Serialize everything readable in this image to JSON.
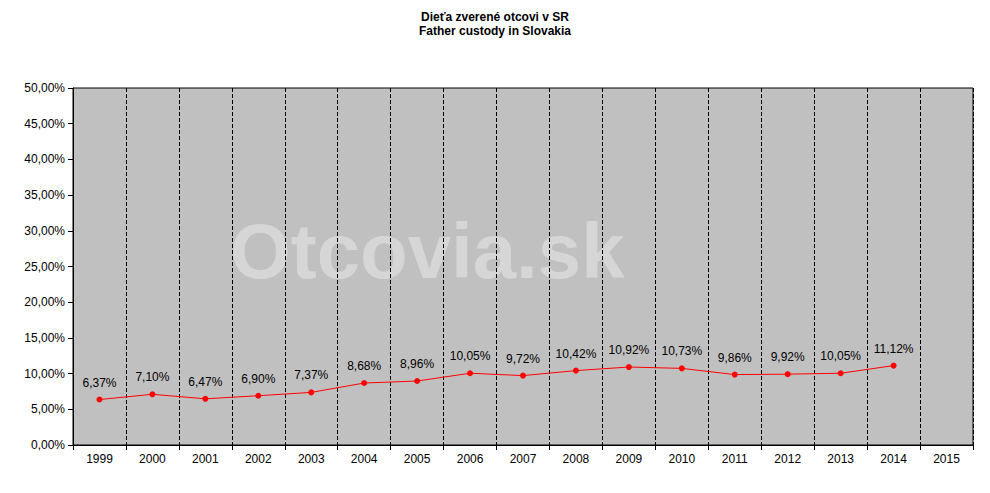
{
  "chart_data": {
    "type": "line",
    "title": "Dieťa zverené otcovi v SR",
    "subtitle": "Father custody in Slovakia",
    "watermark": "Otcovia.sk",
    "categories": [
      "1999",
      "2000",
      "2001",
      "2002",
      "2003",
      "2004",
      "2005",
      "2006",
      "2007",
      "2008",
      "2009",
      "2010",
      "2011",
      "2012",
      "2013",
      "2014",
      "2015"
    ],
    "values": [
      6.37,
      7.1,
      6.47,
      6.9,
      7.37,
      8.68,
      8.96,
      10.05,
      9.72,
      10.42,
      10.92,
      10.73,
      9.86,
      9.92,
      10.05,
      11.12,
      null
    ],
    "value_labels": [
      "6,37%",
      "7,10%",
      "6,47%",
      "6,90%",
      "7,37%",
      "8,68%",
      "8,96%",
      "10,05%",
      "9,72%",
      "10,42%",
      "10,92%",
      "10,73%",
      "9,86%",
      "9,92%",
      "10,05%",
      "11,12%",
      null
    ],
    "color": "#ff0000",
    "marker": "circle",
    "data_labels": true,
    "grid": true,
    "ylim": [
      0,
      50
    ],
    "yticks": [
      {
        "value": 0,
        "label": "0,00%"
      },
      {
        "value": 5,
        "label": "5,00%"
      },
      {
        "value": 10,
        "label": "10,00%"
      },
      {
        "value": 15,
        "label": "15,00%"
      },
      {
        "value": 20,
        "label": "20,00%"
      },
      {
        "value": 25,
        "label": "25,00%"
      },
      {
        "value": 30,
        "label": "30,00%"
      },
      {
        "value": 35,
        "label": "35,00%"
      },
      {
        "value": 40,
        "label": "40,00%"
      },
      {
        "value": 45,
        "label": "45,00%"
      },
      {
        "value": 50,
        "label": "50,00%"
      }
    ]
  }
}
